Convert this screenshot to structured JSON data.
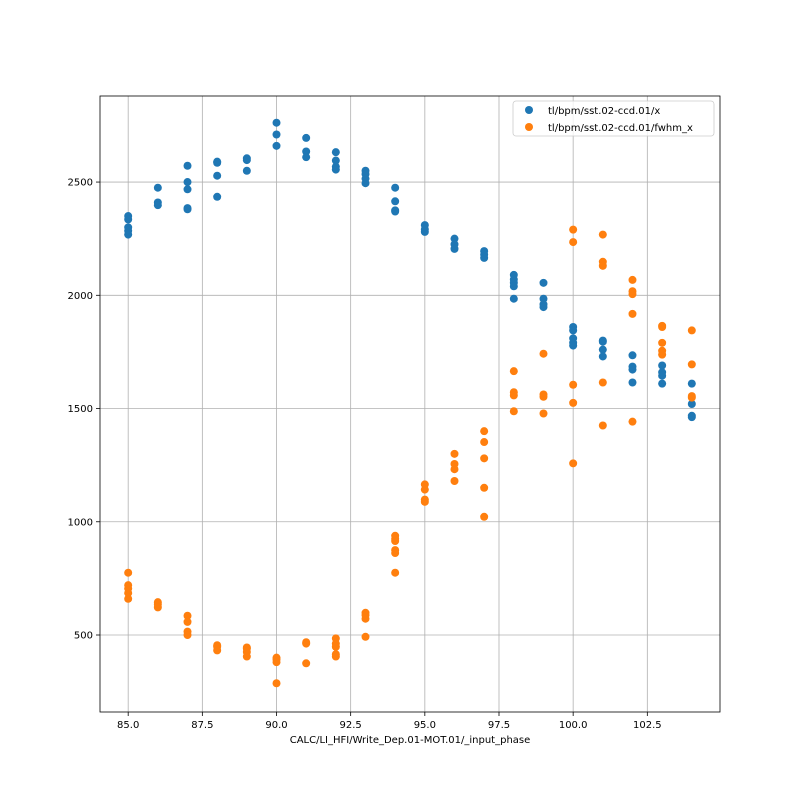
{
  "chart_data": {
    "type": "scatter",
    "title": "",
    "xlabel": "CALC/LI_HFI/Write_Dep.01-MOT.01/_input_phase",
    "ylabel": "",
    "xlim": [
      84.05,
      104.95
    ],
    "ylim": [
      160,
      2880
    ],
    "xticks": [
      85.0,
      87.5,
      90.0,
      92.5,
      95.0,
      97.5,
      100.0,
      102.5
    ],
    "xtick_labels": [
      "85.0",
      "87.5",
      "90.0",
      "92.5",
      "95.0",
      "97.5",
      "100.0",
      "102.5"
    ],
    "yticks": [
      500,
      1000,
      1500,
      2000,
      2500
    ],
    "ytick_labels": [
      "500",
      "1000",
      "1500",
      "2000",
      "2500"
    ],
    "grid": true,
    "legend_position": "top-right",
    "series": [
      {
        "name": "tl/bpm/sst.02-ccd.01/x",
        "color": "#1f77b4",
        "points": [
          [
            85,
            2350
          ],
          [
            85,
            2335
          ],
          [
            85,
            2300
          ],
          [
            85,
            2285
          ],
          [
            85,
            2268
          ],
          [
            86,
            2475
          ],
          [
            86,
            2410
          ],
          [
            86,
            2398
          ],
          [
            87,
            2572
          ],
          [
            87,
            2500
          ],
          [
            87,
            2468
          ],
          [
            87,
            2385
          ],
          [
            87,
            2380
          ],
          [
            88,
            2590
          ],
          [
            88,
            2585
          ],
          [
            88,
            2528
          ],
          [
            88,
            2435
          ],
          [
            89,
            2605
          ],
          [
            89,
            2597
          ],
          [
            89,
            2550
          ],
          [
            90,
            2762
          ],
          [
            90,
            2710
          ],
          [
            90,
            2660
          ],
          [
            91,
            2695
          ],
          [
            91,
            2635
          ],
          [
            91,
            2610
          ],
          [
            92,
            2632
          ],
          [
            92,
            2595
          ],
          [
            92,
            2568
          ],
          [
            92,
            2555
          ],
          [
            93,
            2550
          ],
          [
            93,
            2535
          ],
          [
            93,
            2515
          ],
          [
            93,
            2495
          ],
          [
            94,
            2475
          ],
          [
            94,
            2415
          ],
          [
            94,
            2375
          ],
          [
            94,
            2370
          ],
          [
            95,
            2310
          ],
          [
            95,
            2292
          ],
          [
            95,
            2280
          ],
          [
            96,
            2250
          ],
          [
            96,
            2225
          ],
          [
            96,
            2205
          ],
          [
            97,
            2195
          ],
          [
            97,
            2180
          ],
          [
            97,
            2165
          ],
          [
            98,
            2090
          ],
          [
            98,
            2070
          ],
          [
            98,
            2055
          ],
          [
            98,
            2040
          ],
          [
            98,
            1985
          ],
          [
            99,
            2055
          ],
          [
            99,
            1985
          ],
          [
            99,
            1960
          ],
          [
            99,
            1948
          ],
          [
            100,
            1860
          ],
          [
            100,
            1845
          ],
          [
            100,
            1810
          ],
          [
            100,
            1790
          ],
          [
            100,
            1778
          ],
          [
            101,
            1800
          ],
          [
            101,
            1795
          ],
          [
            101,
            1760
          ],
          [
            101,
            1730
          ],
          [
            102,
            1735
          ],
          [
            102,
            1685
          ],
          [
            102,
            1672
          ],
          [
            102,
            1615
          ],
          [
            103,
            1690
          ],
          [
            103,
            1660
          ],
          [
            103,
            1645
          ],
          [
            103,
            1610
          ],
          [
            104,
            1610
          ],
          [
            104,
            1520
          ],
          [
            104,
            1468
          ],
          [
            104,
            1462
          ]
        ]
      },
      {
        "name": "tl/bpm/sst.02-ccd.01/fwhm_x",
        "color": "#ff7f0e",
        "points": [
          [
            85,
            775
          ],
          [
            85,
            720
          ],
          [
            85,
            705
          ],
          [
            85,
            685
          ],
          [
            85,
            660
          ],
          [
            86,
            645
          ],
          [
            86,
            635
          ],
          [
            86,
            622
          ],
          [
            87,
            585
          ],
          [
            87,
            558
          ],
          [
            87,
            515
          ],
          [
            87,
            500
          ],
          [
            88,
            455
          ],
          [
            88,
            448
          ],
          [
            88,
            432
          ],
          [
            89,
            445
          ],
          [
            89,
            440
          ],
          [
            89,
            425
          ],
          [
            89,
            405
          ],
          [
            90,
            400
          ],
          [
            90,
            392
          ],
          [
            90,
            380
          ],
          [
            90,
            287
          ],
          [
            91,
            468
          ],
          [
            91,
            462
          ],
          [
            91,
            375
          ],
          [
            92,
            485
          ],
          [
            92,
            462
          ],
          [
            92,
            448
          ],
          [
            92,
            415
          ],
          [
            92,
            405
          ],
          [
            93,
            598
          ],
          [
            93,
            588
          ],
          [
            93,
            572
          ],
          [
            93,
            492
          ],
          [
            94,
            938
          ],
          [
            94,
            925
          ],
          [
            94,
            915
          ],
          [
            94,
            875
          ],
          [
            94,
            862
          ],
          [
            94,
            775
          ],
          [
            95,
            1165
          ],
          [
            95,
            1142
          ],
          [
            95,
            1098
          ],
          [
            95,
            1088
          ],
          [
            96,
            1300
          ],
          [
            96,
            1255
          ],
          [
            96,
            1232
          ],
          [
            96,
            1180
          ],
          [
            97,
            1400
          ],
          [
            97,
            1352
          ],
          [
            97,
            1280
          ],
          [
            97,
            1150
          ],
          [
            97,
            1022
          ],
          [
            98,
            1665
          ],
          [
            98,
            1572
          ],
          [
            98,
            1558
          ],
          [
            98,
            1488
          ],
          [
            99,
            1742
          ],
          [
            99,
            1562
          ],
          [
            99,
            1552
          ],
          [
            99,
            1478
          ],
          [
            100,
            2290
          ],
          [
            100,
            2235
          ],
          [
            100,
            1605
          ],
          [
            100,
            1525
          ],
          [
            100,
            1258
          ],
          [
            101,
            2268
          ],
          [
            101,
            2148
          ],
          [
            101,
            2130
          ],
          [
            101,
            1615
          ],
          [
            101,
            1425
          ],
          [
            102,
            2068
          ],
          [
            102,
            2018
          ],
          [
            102,
            2005
          ],
          [
            102,
            1918
          ],
          [
            102,
            1442
          ],
          [
            103,
            1865
          ],
          [
            103,
            1860
          ],
          [
            103,
            1790
          ],
          [
            103,
            1755
          ],
          [
            103,
            1738
          ],
          [
            104,
            1845
          ],
          [
            104,
            1695
          ],
          [
            104,
            1555
          ],
          [
            104,
            1548
          ]
        ]
      }
    ]
  }
}
